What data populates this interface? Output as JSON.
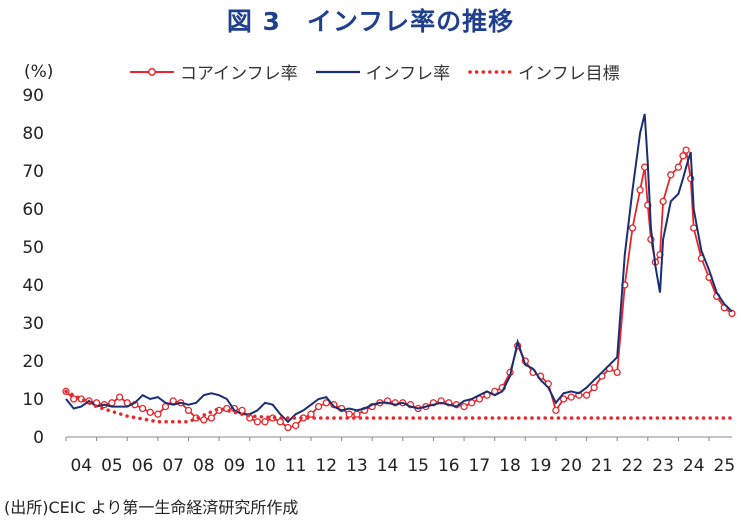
{
  "chart_data": {
    "type": "line",
    "title": "図 3　インフレ率の推移",
    "ylabel": "(%)",
    "ylim": [
      0,
      90
    ],
    "yticks": [
      0,
      10,
      20,
      30,
      40,
      50,
      60,
      70,
      80,
      90
    ],
    "xlim": [
      2004.0,
      2025.75
    ],
    "xticks": [
      "04",
      "05",
      "06",
      "07",
      "08",
      "09",
      "10",
      "11",
      "12",
      "13",
      "14",
      "15",
      "16",
      "17",
      "18",
      "19",
      "20",
      "21",
      "22",
      "23",
      "24",
      "25"
    ],
    "grid": false,
    "legend_placement": "top",
    "source": "(出所)CEIC より第一生命経済研究所作成",
    "series": [
      {
        "name": "コアインフレ率",
        "color": "#e8262b",
        "style": "line-circle-markers",
        "points": [
          [
            2004.0,
            12
          ],
          [
            2004.25,
            10
          ],
          [
            2004.5,
            10
          ],
          [
            2004.75,
            9.5
          ],
          [
            2005.0,
            9
          ],
          [
            2005.25,
            8.5
          ],
          [
            2005.5,
            9
          ],
          [
            2005.75,
            10.5
          ],
          [
            2006.0,
            9
          ],
          [
            2006.25,
            8.5
          ],
          [
            2006.5,
            7.5
          ],
          [
            2006.75,
            6.5
          ],
          [
            2007.0,
            6
          ],
          [
            2007.25,
            8
          ],
          [
            2007.5,
            9.5
          ],
          [
            2007.75,
            9
          ],
          [
            2008.0,
            7
          ],
          [
            2008.25,
            5
          ],
          [
            2008.5,
            4.5
          ],
          [
            2008.75,
            5
          ],
          [
            2009.0,
            7
          ],
          [
            2009.25,
            7.5
          ],
          [
            2009.5,
            7.5
          ],
          [
            2009.75,
            7
          ],
          [
            2010.0,
            5
          ],
          [
            2010.25,
            4
          ],
          [
            2010.5,
            4
          ],
          [
            2010.75,
            5
          ],
          [
            2011.0,
            4
          ],
          [
            2011.25,
            2.5
          ],
          [
            2011.5,
            3
          ],
          [
            2011.75,
            5
          ],
          [
            2012.0,
            6
          ],
          [
            2012.25,
            8
          ],
          [
            2012.5,
            9
          ],
          [
            2012.75,
            8.5
          ],
          [
            2013.0,
            7.5
          ],
          [
            2013.25,
            6
          ],
          [
            2013.5,
            6
          ],
          [
            2013.75,
            7
          ],
          [
            2014.0,
            8
          ],
          [
            2014.25,
            9
          ],
          [
            2014.5,
            9.5
          ],
          [
            2014.75,
            9
          ],
          [
            2015.0,
            9
          ],
          [
            2015.25,
            8.5
          ],
          [
            2015.5,
            7.5
          ],
          [
            2015.75,
            8
          ],
          [
            2016.0,
            9
          ],
          [
            2016.25,
            9.5
          ],
          [
            2016.5,
            9
          ],
          [
            2016.75,
            8.5
          ],
          [
            2017.0,
            8
          ],
          [
            2017.25,
            9
          ],
          [
            2017.5,
            10
          ],
          [
            2017.75,
            11
          ],
          [
            2018.0,
            12
          ],
          [
            2018.25,
            13
          ],
          [
            2018.5,
            17
          ],
          [
            2018.75,
            24
          ],
          [
            2019.0,
            20
          ],
          [
            2019.25,
            17
          ],
          [
            2019.5,
            16
          ],
          [
            2019.75,
            14
          ],
          [
            2020.0,
            7
          ],
          [
            2020.25,
            10
          ],
          [
            2020.5,
            10.5
          ],
          [
            2020.75,
            11
          ],
          [
            2021.0,
            11
          ],
          [
            2021.25,
            13
          ],
          [
            2021.5,
            16
          ],
          [
            2021.75,
            18
          ],
          [
            2022.0,
            17
          ],
          [
            2022.25,
            40
          ],
          [
            2022.5,
            55
          ],
          [
            2022.75,
            65
          ],
          [
            2022.9,
            71
          ],
          [
            2023.0,
            61
          ],
          [
            2023.1,
            52
          ],
          [
            2023.25,
            46
          ],
          [
            2023.4,
            48
          ],
          [
            2023.5,
            62
          ],
          [
            2023.75,
            69
          ],
          [
            2024.0,
            71
          ],
          [
            2024.15,
            74
          ],
          [
            2024.25,
            75.5
          ],
          [
            2024.4,
            68
          ],
          [
            2024.5,
            55
          ],
          [
            2024.75,
            47
          ],
          [
            2025.0,
            42
          ],
          [
            2025.25,
            37
          ],
          [
            2025.5,
            34
          ],
          [
            2025.75,
            32.5
          ]
        ]
      },
      {
        "name": "インフレ率",
        "color": "#1a2f73",
        "style": "line",
        "points": [
          [
            2004.0,
            10
          ],
          [
            2004.25,
            7.5
          ],
          [
            2004.5,
            8
          ],
          [
            2004.75,
            9.5
          ],
          [
            2005.0,
            8
          ],
          [
            2005.25,
            8.5
          ],
          [
            2005.5,
            8
          ],
          [
            2005.75,
            8
          ],
          [
            2006.0,
            8
          ],
          [
            2006.25,
            9
          ],
          [
            2006.5,
            11
          ],
          [
            2006.75,
            10
          ],
          [
            2007.0,
            10.5
          ],
          [
            2007.25,
            9
          ],
          [
            2007.5,
            8.5
          ],
          [
            2007.75,
            9
          ],
          [
            2008.0,
            8.5
          ],
          [
            2008.25,
            9
          ],
          [
            2008.5,
            11
          ],
          [
            2008.75,
            11.5
          ],
          [
            2009.0,
            11
          ],
          [
            2009.25,
            10
          ],
          [
            2009.5,
            7
          ],
          [
            2009.75,
            6
          ],
          [
            2010.0,
            6
          ],
          [
            2010.25,
            7
          ],
          [
            2010.5,
            9
          ],
          [
            2010.75,
            8.5
          ],
          [
            2011.0,
            6
          ],
          [
            2011.25,
            4
          ],
          [
            2011.5,
            6
          ],
          [
            2011.75,
            7
          ],
          [
            2012.0,
            8.5
          ],
          [
            2012.25,
            10
          ],
          [
            2012.5,
            10.5
          ],
          [
            2012.75,
            8
          ],
          [
            2013.0,
            7
          ],
          [
            2013.25,
            7.5
          ],
          [
            2013.5,
            7
          ],
          [
            2013.75,
            7.5
          ],
          [
            2014.0,
            8.5
          ],
          [
            2014.25,
            9
          ],
          [
            2014.5,
            9
          ],
          [
            2014.75,
            8.5
          ],
          [
            2015.0,
            9
          ],
          [
            2015.25,
            8
          ],
          [
            2015.5,
            7.5
          ],
          [
            2015.75,
            8
          ],
          [
            2016.0,
            8.5
          ],
          [
            2016.25,
            9
          ],
          [
            2016.5,
            8.5
          ],
          [
            2016.75,
            8
          ],
          [
            2017.0,
            9.5
          ],
          [
            2017.25,
            10
          ],
          [
            2017.5,
            11
          ],
          [
            2017.75,
            12
          ],
          [
            2018.0,
            11
          ],
          [
            2018.25,
            12
          ],
          [
            2018.5,
            16
          ],
          [
            2018.75,
            25
          ],
          [
            2019.0,
            19
          ],
          [
            2019.25,
            18
          ],
          [
            2019.5,
            15
          ],
          [
            2019.75,
            13
          ],
          [
            2020.0,
            9
          ],
          [
            2020.25,
            11.5
          ],
          [
            2020.5,
            12
          ],
          [
            2020.75,
            11.5
          ],
          [
            2021.0,
            13
          ],
          [
            2021.25,
            15
          ],
          [
            2021.5,
            17
          ],
          [
            2021.75,
            19
          ],
          [
            2022.0,
            21
          ],
          [
            2022.25,
            48
          ],
          [
            2022.5,
            65
          ],
          [
            2022.75,
            80
          ],
          [
            2022.9,
            85
          ],
          [
            2023.0,
            72
          ],
          [
            2023.1,
            55
          ],
          [
            2023.25,
            45
          ],
          [
            2023.4,
            38
          ],
          [
            2023.5,
            52
          ],
          [
            2023.75,
            62
          ],
          [
            2024.0,
            64
          ],
          [
            2024.15,
            68
          ],
          [
            2024.25,
            71
          ],
          [
            2024.4,
            75
          ],
          [
            2024.5,
            60
          ],
          [
            2024.75,
            49
          ],
          [
            2025.0,
            44
          ],
          [
            2025.25,
            38
          ],
          [
            2025.5,
            35
          ],
          [
            2025.75,
            33
          ]
        ]
      },
      {
        "name": "インフレ目標",
        "color": "#e8262b",
        "style": "dotted",
        "points": [
          [
            2004.0,
            12
          ],
          [
            2005.0,
            8
          ],
          [
            2006.0,
            5.5
          ],
          [
            2007.0,
            4
          ],
          [
            2008.0,
            4
          ],
          [
            2009.0,
            7.5
          ],
          [
            2010.0,
            5.5
          ],
          [
            2011.0,
            5
          ],
          [
            2012.0,
            5
          ],
          [
            2013.0,
            5
          ],
          [
            2014.0,
            5
          ],
          [
            2015.0,
            5
          ],
          [
            2016.0,
            5
          ],
          [
            2017.0,
            5
          ],
          [
            2018.0,
            5
          ],
          [
            2019.0,
            5
          ],
          [
            2020.0,
            5
          ],
          [
            2021.0,
            5
          ],
          [
            2022.0,
            5
          ],
          [
            2023.0,
            5
          ],
          [
            2024.0,
            5
          ],
          [
            2025.0,
            5
          ],
          [
            2025.75,
            5
          ]
        ]
      }
    ]
  }
}
